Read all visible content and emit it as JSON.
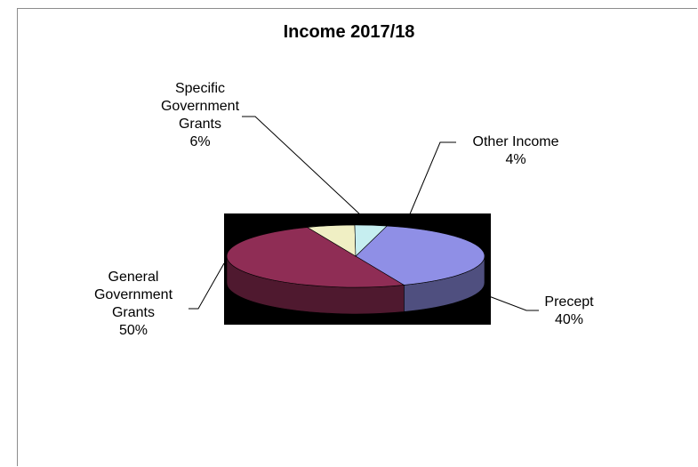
{
  "chart_data": {
    "type": "pie",
    "title": "Income 2017/18",
    "categories": [
      "Precept",
      "General Government Grants",
      "Specific Government Grants",
      "Other Income"
    ],
    "values": [
      40,
      50,
      6,
      4
    ],
    "labels": [
      {
        "lines": [
          "Precept",
          "40%"
        ]
      },
      {
        "lines": [
          "General",
          "Government",
          "Grants",
          "50%"
        ]
      },
      {
        "lines": [
          "Specific",
          "Government",
          "Grants",
          "6%"
        ]
      },
      {
        "lines": [
          "Other Income",
          "4%"
        ]
      }
    ],
    "colors": [
      "#8f8fe6",
      "#8f2d55",
      "#f0efc4",
      "#c6eef0"
    ],
    "legend": "none",
    "style": "3d"
  }
}
